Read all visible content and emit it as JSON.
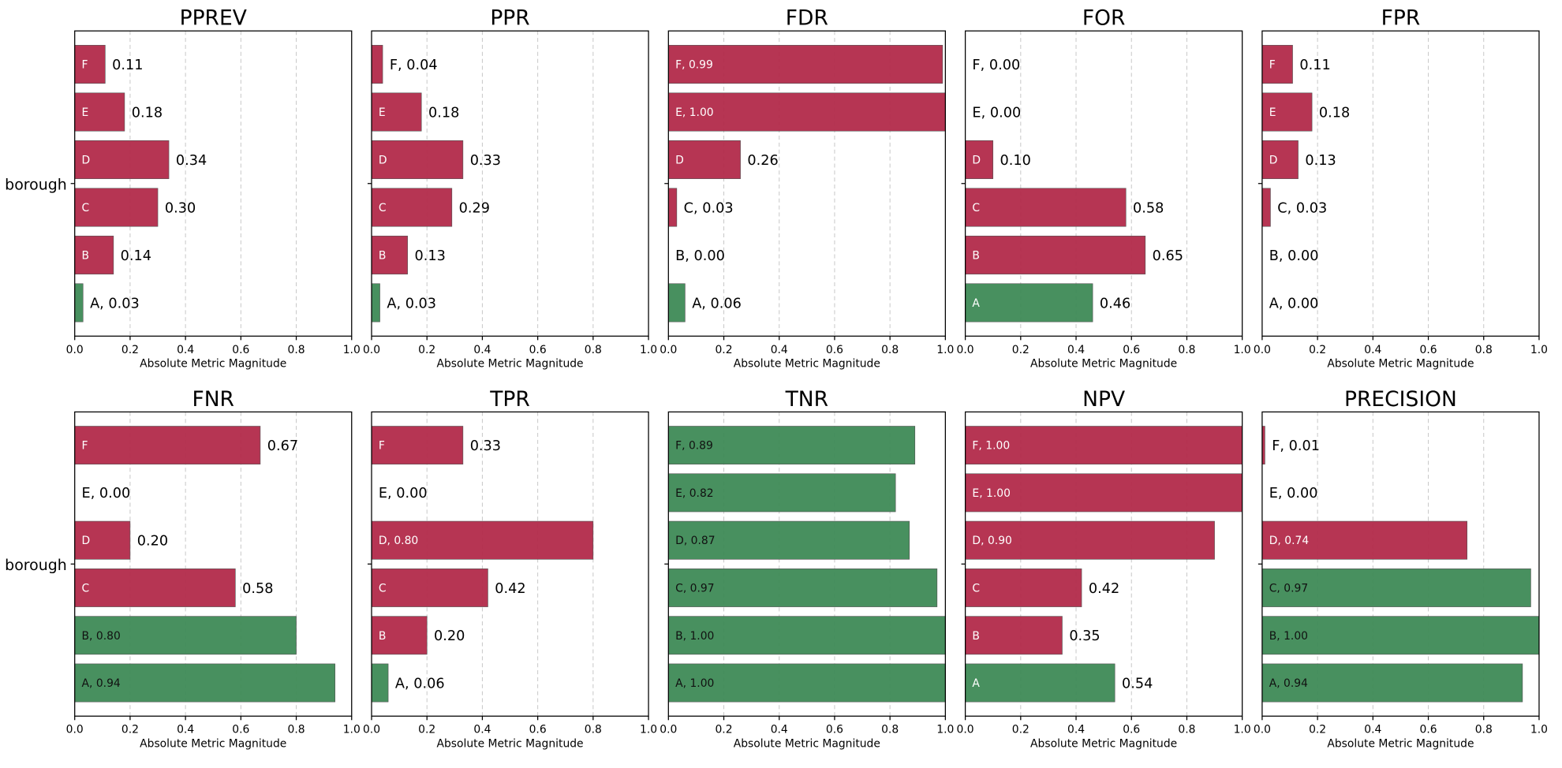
{
  "colors": {
    "bad": "#b22a4a",
    "good": "#3e8a56",
    "axes": "#000000",
    "grid": "#c8c8c8"
  },
  "row_label": "borough",
  "tick_labels": [
    "0.0",
    "0.2",
    "0.4",
    "0.6",
    "0.8",
    "1.0"
  ],
  "chart_data": [
    {
      "type": "bar",
      "title": "PPREV",
      "xlabel": "Absolute Metric Magnitude",
      "ylabel": "borough",
      "xlim": [
        0,
        1
      ],
      "grid": "x dashed",
      "bars": [
        {
          "category": "A",
          "value": 0.03,
          "label": "A, 0.03",
          "status": "good"
        },
        {
          "category": "B",
          "value": 0.14,
          "label": "0.14",
          "inner_label": "B",
          "status": "bad"
        },
        {
          "category": "C",
          "value": 0.3,
          "label": "0.30",
          "inner_label": "C",
          "status": "bad"
        },
        {
          "category": "D",
          "value": 0.34,
          "label": "0.34",
          "inner_label": "D",
          "status": "bad"
        },
        {
          "category": "E",
          "value": 0.18,
          "label": "0.18",
          "inner_label": "E",
          "status": "bad"
        },
        {
          "category": "F",
          "value": 0.11,
          "label": "0.11",
          "inner_label": "F",
          "status": "bad"
        }
      ]
    },
    {
      "type": "bar",
      "title": "PPR",
      "xlabel": "Absolute Metric Magnitude",
      "xlim": [
        0,
        1
      ],
      "grid": "x dashed",
      "bars": [
        {
          "category": "A",
          "value": 0.03,
          "label": "A, 0.03",
          "status": "good"
        },
        {
          "category": "B",
          "value": 0.13,
          "label": "0.13",
          "inner_label": "B",
          "status": "bad"
        },
        {
          "category": "C",
          "value": 0.29,
          "label": "0.29",
          "inner_label": "C",
          "status": "bad"
        },
        {
          "category": "D",
          "value": 0.33,
          "label": "0.33",
          "inner_label": "D",
          "status": "bad"
        },
        {
          "category": "E",
          "value": 0.18,
          "label": "0.18",
          "inner_label": "E",
          "status": "bad"
        },
        {
          "category": "F",
          "value": 0.04,
          "label": "F, 0.04",
          "status": "bad"
        }
      ]
    },
    {
      "type": "bar",
      "title": "FDR",
      "xlabel": "Absolute Metric Magnitude",
      "xlim": [
        0,
        1
      ],
      "grid": "x dashed",
      "bars": [
        {
          "category": "A",
          "value": 0.06,
          "label": "A, 0.06",
          "status": "good"
        },
        {
          "category": "B",
          "value": 0.0,
          "label": "B, 0.00",
          "status": "bad"
        },
        {
          "category": "C",
          "value": 0.03,
          "label": "C, 0.03",
          "status": "bad"
        },
        {
          "category": "D",
          "value": 0.26,
          "label": "0.26",
          "inner_label": "D",
          "status": "bad"
        },
        {
          "category": "E",
          "value": 1.0,
          "inner_label": "E, 1.00",
          "status": "bad"
        },
        {
          "category": "F",
          "value": 0.99,
          "inner_label": "F, 0.99",
          "status": "bad"
        }
      ]
    },
    {
      "type": "bar",
      "title": "FOR",
      "xlabel": "Absolute Metric Magnitude",
      "xlim": [
        0,
        1
      ],
      "grid": "x dashed",
      "bars": [
        {
          "category": "A",
          "value": 0.46,
          "label": "0.46",
          "inner_label": "A",
          "status": "good"
        },
        {
          "category": "B",
          "value": 0.65,
          "label": "0.65",
          "inner_label": "B",
          "status": "bad"
        },
        {
          "category": "C",
          "value": 0.58,
          "label": "0.58",
          "inner_label": "C",
          "status": "bad"
        },
        {
          "category": "D",
          "value": 0.1,
          "label": "0.10",
          "inner_label": "D",
          "status": "bad"
        },
        {
          "category": "E",
          "value": 0.0,
          "label": "E, 0.00",
          "status": "bad"
        },
        {
          "category": "F",
          "value": 0.0,
          "label": "F, 0.00",
          "status": "bad"
        }
      ]
    },
    {
      "type": "bar",
      "title": "FPR",
      "xlabel": "Absolute Metric Magnitude",
      "xlim": [
        0,
        1
      ],
      "grid": "x dashed",
      "bars": [
        {
          "category": "A",
          "value": 0.0,
          "label": "A, 0.00",
          "status": "good"
        },
        {
          "category": "B",
          "value": 0.0,
          "label": "B, 0.00",
          "status": "bad"
        },
        {
          "category": "C",
          "value": 0.03,
          "label": "C, 0.03",
          "status": "bad"
        },
        {
          "category": "D",
          "value": 0.13,
          "label": "0.13",
          "inner_label": "D",
          "status": "bad"
        },
        {
          "category": "E",
          "value": 0.18,
          "label": "0.18",
          "inner_label": "E",
          "status": "bad"
        },
        {
          "category": "F",
          "value": 0.11,
          "label": "0.11",
          "inner_label": "F",
          "status": "bad"
        }
      ]
    },
    {
      "type": "bar",
      "title": "FNR",
      "xlabel": "Absolute Metric Magnitude",
      "ylabel": "borough",
      "xlim": [
        0,
        1
      ],
      "grid": "x dashed",
      "bars": [
        {
          "category": "A",
          "value": 0.94,
          "inner_label": "A, 0.94",
          "status": "good"
        },
        {
          "category": "B",
          "value": 0.8,
          "inner_label": "B, 0.80",
          "status": "good"
        },
        {
          "category": "C",
          "value": 0.58,
          "label": "0.58",
          "inner_label": "C",
          "status": "bad"
        },
        {
          "category": "D",
          "value": 0.2,
          "label": "0.20",
          "inner_label": "D",
          "status": "bad"
        },
        {
          "category": "E",
          "value": 0.0,
          "label": "E, 0.00",
          "status": "bad"
        },
        {
          "category": "F",
          "value": 0.67,
          "label": "0.67",
          "inner_label": "F",
          "status": "bad"
        }
      ]
    },
    {
      "type": "bar",
      "title": "TPR",
      "xlabel": "Absolute Metric Magnitude",
      "xlim": [
        0,
        1
      ],
      "grid": "x dashed",
      "bars": [
        {
          "category": "A",
          "value": 0.06,
          "label": "A, 0.06",
          "status": "good"
        },
        {
          "category": "B",
          "value": 0.2,
          "label": "0.20",
          "inner_label": "B",
          "status": "bad"
        },
        {
          "category": "C",
          "value": 0.42,
          "label": "0.42",
          "inner_label": "C",
          "status": "bad"
        },
        {
          "category": "D",
          "value": 0.8,
          "inner_label": "D, 0.80",
          "status": "bad"
        },
        {
          "category": "E",
          "value": 0.0,
          "label": "E, 0.00",
          "status": "bad"
        },
        {
          "category": "F",
          "value": 0.33,
          "label": "0.33",
          "inner_label": "F",
          "status": "bad"
        }
      ]
    },
    {
      "type": "bar",
      "title": "TNR",
      "xlabel": "Absolute Metric Magnitude",
      "xlim": [
        0,
        1
      ],
      "grid": "x dashed",
      "bars": [
        {
          "category": "A",
          "value": 1.0,
          "inner_label": "A, 1.00",
          "status": "good"
        },
        {
          "category": "B",
          "value": 1.0,
          "inner_label": "B, 1.00",
          "status": "good"
        },
        {
          "category": "C",
          "value": 0.97,
          "inner_label": "C, 0.97",
          "status": "good"
        },
        {
          "category": "D",
          "value": 0.87,
          "inner_label": "D, 0.87",
          "status": "good"
        },
        {
          "category": "E",
          "value": 0.82,
          "inner_label": "E, 0.82",
          "status": "good"
        },
        {
          "category": "F",
          "value": 0.89,
          "inner_label": "F, 0.89",
          "status": "good"
        }
      ]
    },
    {
      "type": "bar",
      "title": "NPV",
      "xlabel": "Absolute Metric Magnitude",
      "xlim": [
        0,
        1
      ],
      "grid": "x dashed",
      "bars": [
        {
          "category": "A",
          "value": 0.54,
          "label": "0.54",
          "inner_label": "A",
          "status": "good"
        },
        {
          "category": "B",
          "value": 0.35,
          "label": "0.35",
          "inner_label": "B",
          "status": "bad"
        },
        {
          "category": "C",
          "value": 0.42,
          "label": "0.42",
          "inner_label": "C",
          "status": "bad"
        },
        {
          "category": "D",
          "value": 0.9,
          "inner_label": "D, 0.90",
          "status": "bad"
        },
        {
          "category": "E",
          "value": 1.0,
          "inner_label": "E, 1.00",
          "status": "bad"
        },
        {
          "category": "F",
          "value": 1.0,
          "inner_label": "F, 1.00",
          "status": "bad"
        }
      ]
    },
    {
      "type": "bar",
      "title": "PRECISION",
      "xlabel": "Absolute Metric Magnitude",
      "xlim": [
        0,
        1
      ],
      "grid": "x dashed",
      "bars": [
        {
          "category": "A",
          "value": 0.94,
          "inner_label": "A, 0.94",
          "status": "good"
        },
        {
          "category": "B",
          "value": 1.0,
          "inner_label": "B, 1.00",
          "status": "good"
        },
        {
          "category": "C",
          "value": 0.97,
          "inner_label": "C, 0.97",
          "status": "good"
        },
        {
          "category": "D",
          "value": 0.74,
          "inner_label": "D, 0.74",
          "status": "bad"
        },
        {
          "category": "E",
          "value": 0.0,
          "label": "E, 0.00",
          "status": "bad"
        },
        {
          "category": "F",
          "value": 0.01,
          "label": "F, 0.01",
          "status": "bad"
        }
      ]
    }
  ]
}
